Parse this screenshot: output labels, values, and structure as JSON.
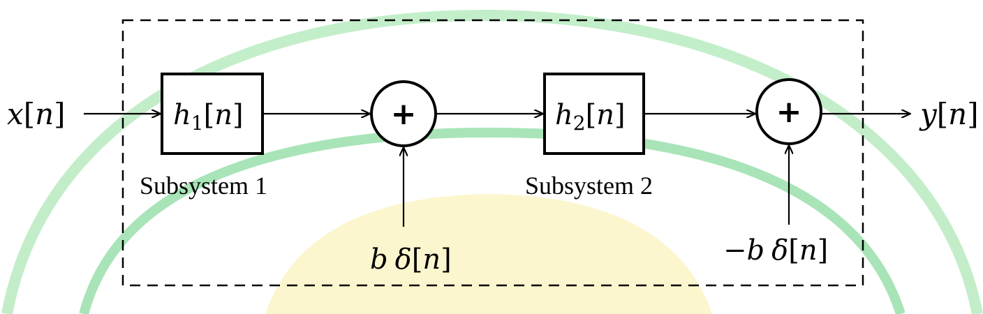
{
  "diagram": {
    "input_signal": {
      "var": "x",
      "arg": "n"
    },
    "output_signal": {
      "var": "y",
      "arg": "n"
    },
    "subsystems": [
      {
        "func": "h",
        "subscript": "1",
        "arg": "n",
        "caption": "Subsystem 1"
      },
      {
        "func": "h",
        "subscript": "2",
        "arg": "n",
        "caption": "Subsystem 2"
      }
    ],
    "adders": [
      {
        "symbol": "+",
        "input_label": {
          "sign": "",
          "coef": "b",
          "func": "δ",
          "arg": "n"
        }
      },
      {
        "symbol": "+",
        "input_label": {
          "sign": "−",
          "coef": "b",
          "func": "δ",
          "arg": "n"
        }
      }
    ]
  },
  "colors": {
    "lines": "#000000",
    "watermark_outer": "#bdecc4",
    "watermark_inner": "#9fe2b0",
    "watermark_center": "#fbf6c9"
  }
}
